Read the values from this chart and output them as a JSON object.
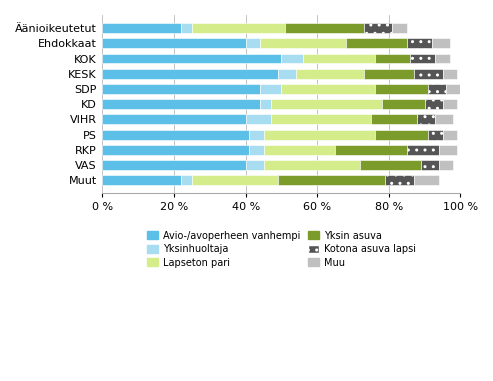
{
  "categories": [
    "Äänioikeutetut",
    "Ehdokkaat",
    "KOK",
    "KESK",
    "SDP",
    "KD",
    "VIHR",
    "PS",
    "RKP",
    "VAS",
    "Muut"
  ],
  "series": {
    "Avio-/avoperheen vanhempi": [
      22,
      40,
      50,
      49,
      44,
      44,
      40,
      41,
      41,
      40,
      22
    ],
    "Yksinhuoltaja": [
      3,
      4,
      6,
      5,
      6,
      3,
      7,
      4,
      4,
      5,
      3
    ],
    "Lapseton pari": [
      26,
      24,
      20,
      19,
      26,
      31,
      28,
      31,
      20,
      27,
      24
    ],
    "Yksin asuva": [
      22,
      17,
      10,
      14,
      15,
      12,
      13,
      15,
      20,
      17,
      30
    ],
    "Kotona asuva lapsi": [
      8,
      7,
      7,
      8,
      5,
      5,
      5,
      4,
      9,
      5,
      8
    ],
    "Muu": [
      4,
      5,
      4,
      4,
      4,
      4,
      5,
      4,
      5,
      4,
      7
    ]
  },
  "colors": {
    "Avio-/avoperheen vanhempi": "#5BBFE8",
    "Yksinhuoltaja": "#A8DCF0",
    "Lapseton pari": "#D4EC8A",
    "Yksin asuva": "#7B9C2A",
    "Kotona asuva lapsi": "#555555",
    "Muu": "#C0C0C0"
  },
  "kotona_hatch": "..",
  "xlim": [
    0,
    100
  ],
  "xticks": [
    0,
    20,
    40,
    60,
    80,
    100
  ],
  "xticklabels": [
    "0 %",
    "20 %",
    "40 %",
    "60 %",
    "80 %",
    "100 %"
  ],
  "legend_left": [
    "Avio-/avoperheen vanhempi",
    "Lapseton pari",
    "Kotona asuva lapsi"
  ],
  "legend_right": [
    "Yksinhuoltaja",
    "Yksin asuva",
    "Muu"
  ],
  "fig_width": 4.93,
  "fig_height": 3.81,
  "dpi": 100
}
